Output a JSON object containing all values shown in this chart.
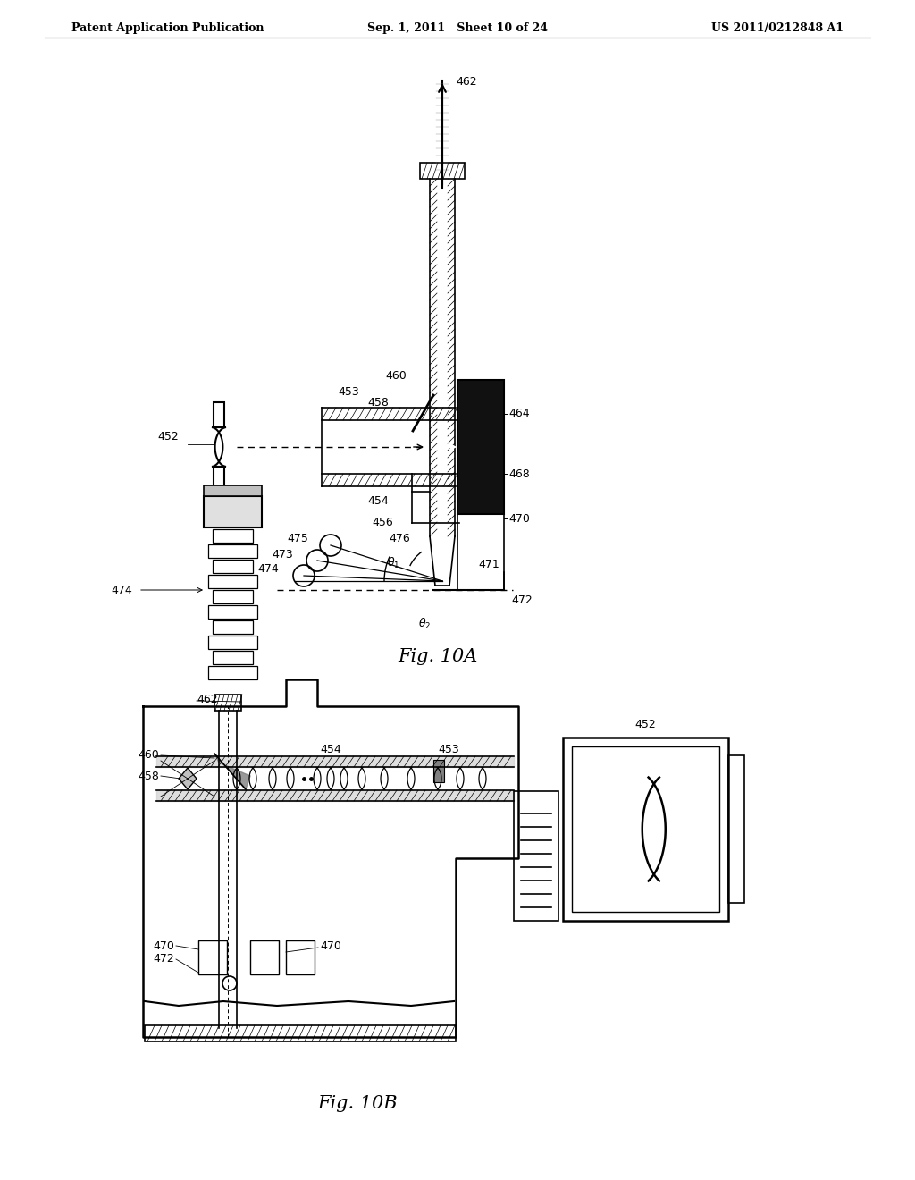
{
  "bg_color": "#ffffff",
  "line_color": "#000000",
  "header_left": "Patent Application Publication",
  "header_mid": "Sep. 1, 2011   Sheet 10 of 24",
  "header_right": "US 2011/0212848 A1",
  "fig10a_caption": "Fig. 10A",
  "fig10b_caption": "Fig. 10B"
}
